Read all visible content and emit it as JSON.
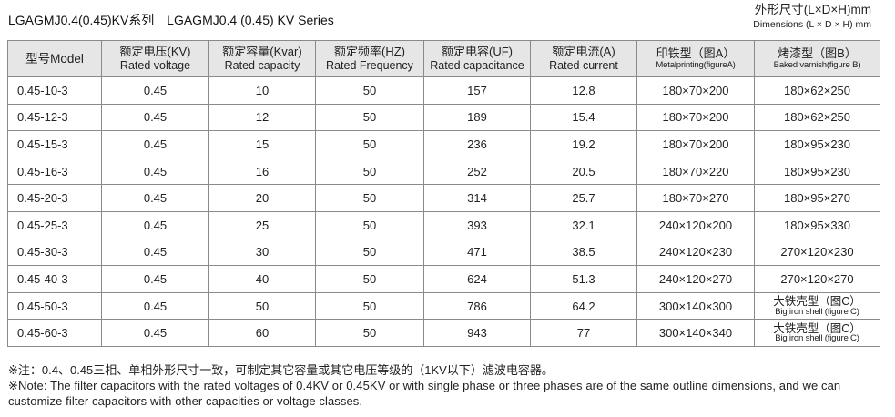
{
  "header": {
    "title_cn": "LGAGMJ0.4(0.45)KV系列",
    "title_en": "LGAGMJ0.4 (0.45) KV Series",
    "dims_cn": "外形尺寸(L×D×H)mm",
    "dims_en": "Dimensions (L × D × H) mm"
  },
  "table": {
    "columns": [
      {
        "cn": "型号Model",
        "en": ""
      },
      {
        "cn": "额定电压(KV)",
        "en": "Rated voltage"
      },
      {
        "cn": "额定容量(Kvar)",
        "en": "Rated capacity"
      },
      {
        "cn": "额定频率(HZ)",
        "en": "Rated Frequency"
      },
      {
        "cn": "额定电容(UF)",
        "en": "Rated capacitance"
      },
      {
        "cn": "额定电流(A)",
        "en": "Rated current"
      },
      {
        "cn": "印铁型（图A）",
        "en": "Metalprinting(figureA)"
      },
      {
        "cn": "烤漆型（图B）",
        "en": "Baked varnish(figure B)"
      }
    ],
    "rows": [
      {
        "model": "0.45-10-3",
        "voltage": "0.45",
        "capacity": "10",
        "frequency": "50",
        "capacitance": "157",
        "current": "12.8",
        "fig_a": "180×70×200",
        "fig_b": "180×62×250"
      },
      {
        "model": "0.45-12-3",
        "voltage": "0.45",
        "capacity": "12",
        "frequency": "50",
        "capacitance": "189",
        "current": "15.4",
        "fig_a": "180×70×200",
        "fig_b": "180×62×250"
      },
      {
        "model": "0.45-15-3",
        "voltage": "0.45",
        "capacity": "15",
        "frequency": "50",
        "capacitance": "236",
        "current": "19.2",
        "fig_a": "180×70×200",
        "fig_b": "180×95×230"
      },
      {
        "model": "0.45-16-3",
        "voltage": "0.45",
        "capacity": "16",
        "frequency": "50",
        "capacitance": "252",
        "current": "20.5",
        "fig_a": "180×70×220",
        "fig_b": "180×95×230"
      },
      {
        "model": "0.45-20-3",
        "voltage": "0.45",
        "capacity": "20",
        "frequency": "50",
        "capacitance": "314",
        "current": "25.7",
        "fig_a": "180×70×270",
        "fig_b": "180×95×270"
      },
      {
        "model": "0.45-25-3",
        "voltage": "0.45",
        "capacity": "25",
        "frequency": "50",
        "capacitance": "393",
        "current": "32.1",
        "fig_a": "240×120×200",
        "fig_b": "180×95×330"
      },
      {
        "model": "0.45-30-3",
        "voltage": "0.45",
        "capacity": "30",
        "frequency": "50",
        "capacitance": "471",
        "current": "38.5",
        "fig_a": "240×120×230",
        "fig_b": "270×120×230"
      },
      {
        "model": "0.45-40-3",
        "voltage": "0.45",
        "capacity": "40",
        "frequency": "50",
        "capacitance": "624",
        "current": "51.3",
        "fig_a": "240×120×270",
        "fig_b": "270×120×270"
      },
      {
        "model": "0.45-50-3",
        "voltage": "0.45",
        "capacity": "50",
        "frequency": "50",
        "capacitance": "786",
        "current": "64.2",
        "fig_a": "300×140×300",
        "fig_b": "",
        "fig_b_cn": "大铁壳型（图C）",
        "fig_b_en": "Big iron shell (figure C)"
      },
      {
        "model": "0.45-60-3",
        "voltage": "0.45",
        "capacity": "60",
        "frequency": "50",
        "capacitance": "943",
        "current": "77",
        "fig_a": "300×140×340",
        "fig_b": "",
        "fig_b_cn": "大铁壳型（图C）",
        "fig_b_en": "Big iron shell (figure C)"
      }
    ]
  },
  "notes": {
    "cn": "※注：0.4、0.45三相、单相外形尺寸一致，可制定其它容量或其它电压等级的（1KV以下）滤波电容器。",
    "en": "※Note: The filter capacitors with the rated voltages of 0.4KV or 0.45KV or with single phase or three phases are of the same outline dimensions, and we can customize filter capacitors with other capacities or voltage classes."
  }
}
